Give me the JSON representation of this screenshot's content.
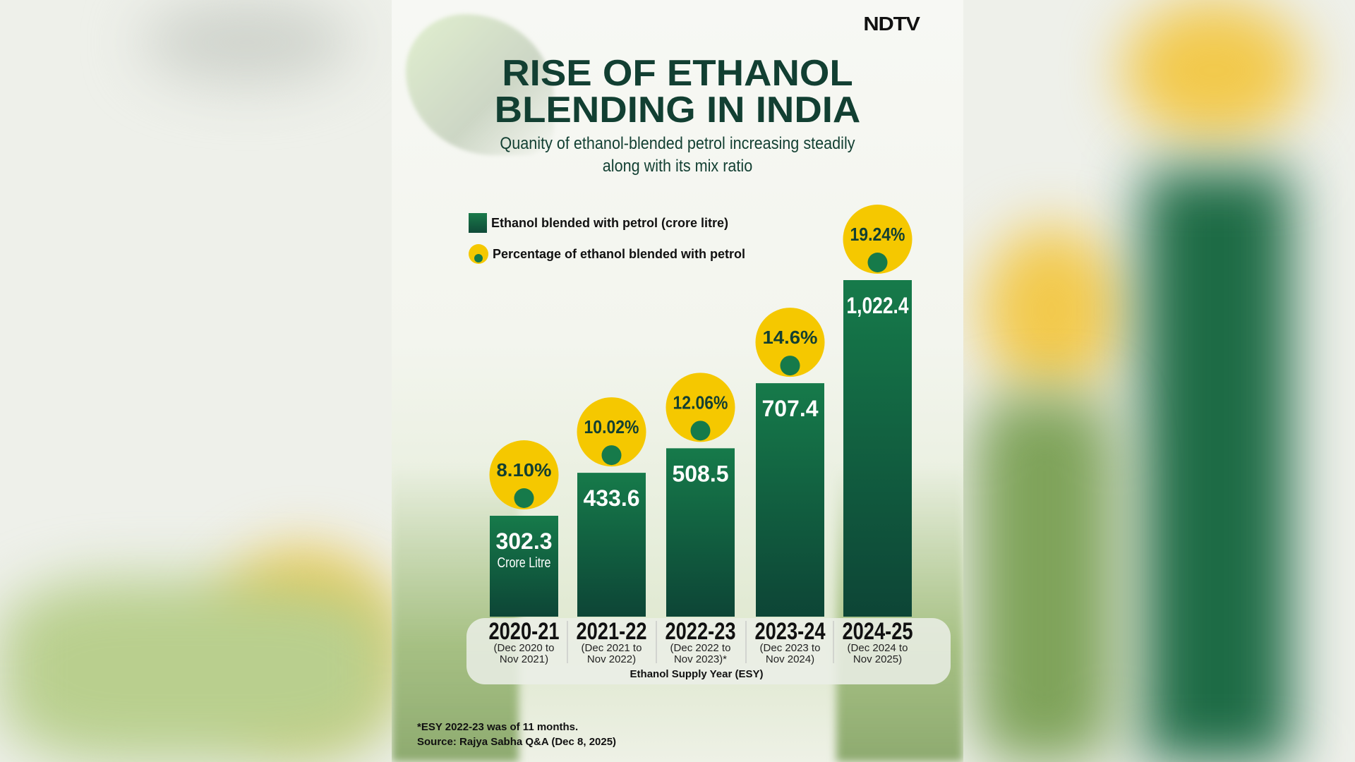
{
  "logo": "NDTV",
  "title": [
    "RISE OF ETHANOL",
    "BLENDING IN INDIA"
  ],
  "subtitle": [
    "Quanity of ethanol-blended petrol increasing steadily",
    "along with its mix ratio"
  ],
  "legend": {
    "bars": "Ethanol blended with petrol (crore litre)",
    "circles": "Percentage of ethanol blended with petrol"
  },
  "footnote": "*ESY 2022-23 was of 11 months.",
  "source": "Source: Rajya Sabha Q&A (Dec 8, 2025)",
  "colors": {
    "bar": "#0f5a3c",
    "circle": "#f5c800",
    "text": "#123f32"
  },
  "chart_data": {
    "type": "bar",
    "title": "RISE OF ETHANOL BLENDING IN INDIA",
    "xlabel": "Ethanol Supply Year (ESY)",
    "ylabel": "Ethanol blended with petrol (crore litre)",
    "categories": [
      "2020-21",
      "2021-22",
      "2022-23",
      "2023-24",
      "2024-25"
    ],
    "category_sublabels": [
      [
        "(Dec 2020 to",
        "Nov 2021)"
      ],
      [
        "(Dec 2021 to",
        "Nov 2022)"
      ],
      [
        "(Dec 2022 to",
        "Nov 2023)*"
      ],
      [
        "(Dec 2023 to",
        "Nov 2024)"
      ],
      [
        "(Dec 2024 to",
        "Nov 2025)"
      ]
    ],
    "value_labels": [
      "302.3",
      "433.6",
      "508.5",
      "707.4",
      "1,022.4"
    ],
    "first_unit_label": "Crore Litre",
    "series": [
      {
        "name": "Ethanol blended with petrol (crore litre)",
        "values": [
          302.3,
          433.6,
          508.5,
          707.4,
          1022.4
        ]
      },
      {
        "name": "Percentage of ethanol blended with petrol",
        "values": [
          8.1,
          10.02,
          12.06,
          14.6,
          19.24
        ],
        "labels": [
          "8.10%",
          "10.02%",
          "12.06%",
          "14.6%",
          "19.24%"
        ]
      }
    ]
  }
}
